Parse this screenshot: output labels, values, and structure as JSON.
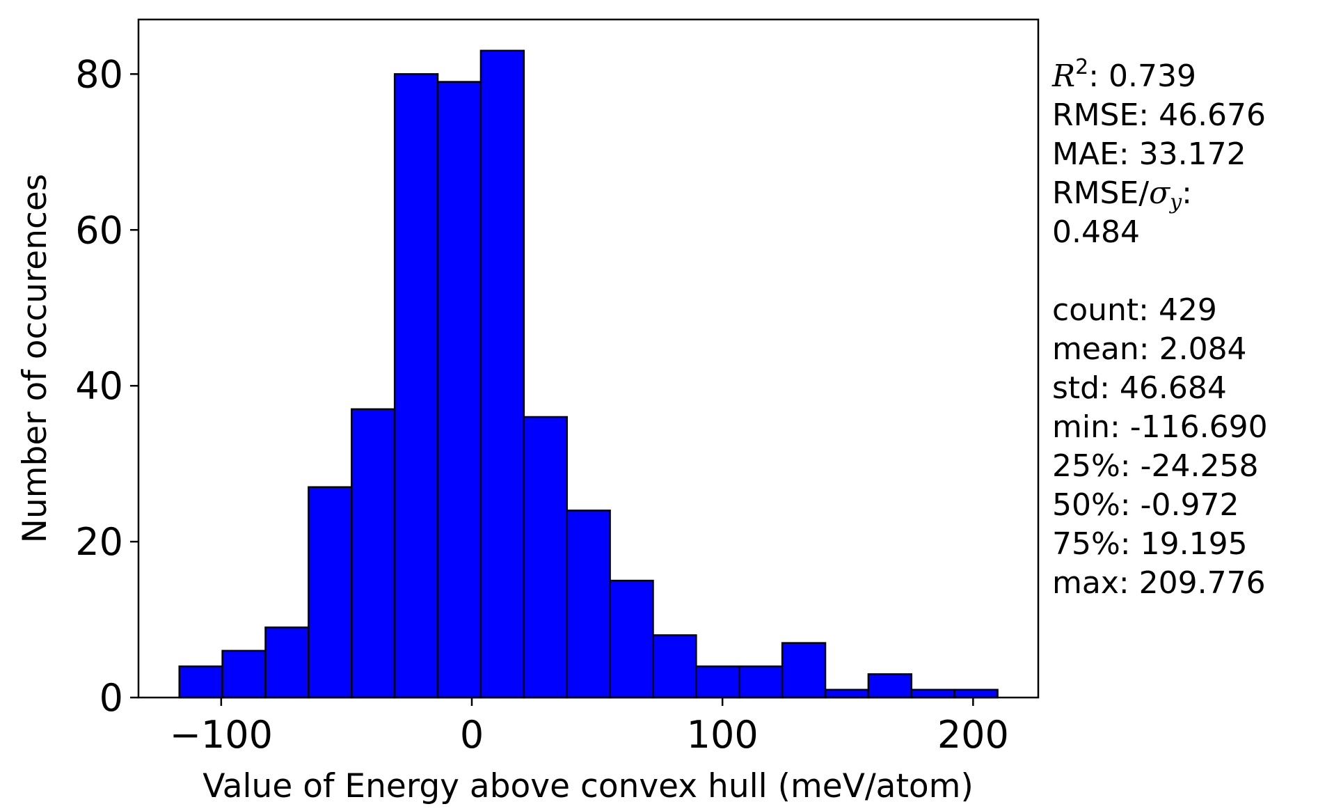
{
  "chart_data": {
    "type": "bar",
    "xlabel": "Value of Energy above convex hull (meV/atom)",
    "ylabel": "Number of occurences",
    "xlim": [
      -133,
      226
    ],
    "ylim": [
      0,
      87
    ],
    "x_ticks": [
      -100,
      0,
      100,
      200
    ],
    "x_tick_labels": [
      "−100",
      "0",
      "100",
      "200"
    ],
    "y_ticks": [
      0,
      20,
      40,
      60,
      80
    ],
    "y_tick_labels": [
      "0",
      "20",
      "40",
      "60",
      "80"
    ],
    "bin_min": -116.69,
    "bin_max": 209.776,
    "counts": [
      4,
      6,
      9,
      27,
      37,
      80,
      79,
      83,
      36,
      24,
      15,
      8,
      4,
      4,
      7,
      1,
      3,
      1,
      1
    ],
    "bar_color": "#0000ff",
    "edge_color": "#000000",
    "grid": false
  },
  "stats": {
    "r2_symbol": "R",
    "r2_exp": "2",
    "r2_value": ": 0.739",
    "rmse": "RMSE: 46.676",
    "mae": "MAE: 33.172",
    "rmse_sigma_prefix": "RMSE/",
    "sigma_symbol": "σ",
    "sigma_sub": "y",
    "rmse_sigma_suffix": ":",
    "rmse_sigma_value": "0.484",
    "count": "count: 429",
    "mean": "mean: 2.084",
    "std": "std: 46.684",
    "min": "min: -116.690",
    "q25": "25%: -24.258",
    "q50": "50%: -0.972",
    "q75": "75%: 19.195",
    "max": "max: 209.776"
  }
}
